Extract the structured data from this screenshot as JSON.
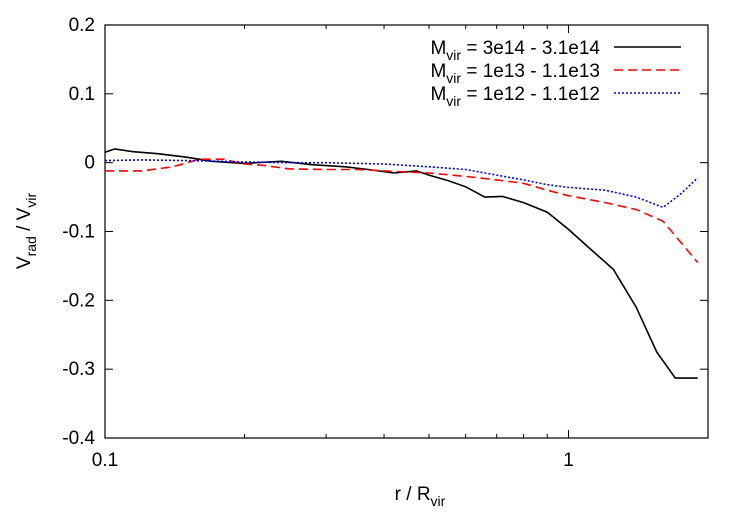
{
  "chart_data": {
    "type": "line",
    "xscale": "log",
    "xlim": [
      0.1,
      2.0
    ],
    "ylim": [
      -0.4,
      0.2
    ],
    "grid": false,
    "legend_position": "top-right",
    "xlabel": {
      "main": "r / R",
      "sub": "vir"
    },
    "ylabel": {
      "a": "V",
      "a_sub": "rad",
      "sep": " / V",
      "b_sub": "vir"
    },
    "x_ticks": [
      {
        "value": 0.1,
        "label": "0.1"
      },
      {
        "value": 1,
        "label": "1"
      }
    ],
    "y_ticks": [
      {
        "value": 0.2,
        "label": "0.2"
      },
      {
        "value": 0.1,
        "label": "0.1"
      },
      {
        "value": 0,
        "label": "0"
      },
      {
        "value": -0.1,
        "label": "-0.1"
      },
      {
        "value": -0.2,
        "label": "-0.2"
      },
      {
        "value": -0.3,
        "label": "-0.3"
      },
      {
        "value": -0.4,
        "label": "-0.4"
      }
    ],
    "series": [
      {
        "name": {
          "m": "M",
          "sub": "vir",
          "rest": " = 3e14 - 3.1e14"
        },
        "color": "#000000",
        "dash": "solid",
        "x": [
          0.1,
          0.105,
          0.115,
          0.13,
          0.15,
          0.17,
          0.2,
          0.24,
          0.28,
          0.33,
          0.37,
          0.42,
          0.47,
          0.5,
          0.55,
          0.6,
          0.66,
          0.72,
          0.8,
          0.9,
          1.0,
          1.1,
          1.25,
          1.4,
          1.55,
          1.7,
          1.9
        ],
        "y": [
          0.015,
          0.02,
          0.016,
          0.013,
          0.008,
          0.002,
          -0.001,
          0.002,
          -0.003,
          -0.006,
          -0.01,
          -0.015,
          -0.012,
          -0.018,
          -0.026,
          -0.035,
          -0.05,
          -0.049,
          -0.058,
          -0.072,
          -0.097,
          -0.122,
          -0.155,
          -0.21,
          -0.275,
          -0.313,
          -0.313
        ]
      },
      {
        "name": {
          "m": "M",
          "sub": "vir",
          "rest": " = 1e13 - 1.1e13"
        },
        "color": "#ff0000",
        "dash": "dashed",
        "x": [
          0.1,
          0.12,
          0.14,
          0.16,
          0.18,
          0.2,
          0.22,
          0.25,
          0.3,
          0.35,
          0.4,
          0.5,
          0.6,
          0.7,
          0.8,
          0.9,
          1.0,
          1.2,
          1.4,
          1.6,
          1.9
        ],
        "y": [
          -0.012,
          -0.012,
          -0.006,
          0.005,
          0.005,
          -0.002,
          -0.004,
          -0.009,
          -0.01,
          -0.01,
          -0.012,
          -0.015,
          -0.02,
          -0.025,
          -0.03,
          -0.04,
          -0.048,
          -0.058,
          -0.068,
          -0.085,
          -0.145
        ]
      },
      {
        "name": {
          "m": "M",
          "sub": "vir",
          "rest": " = 1e12 - 1.1e12"
        },
        "color": "#0000ff",
        "dash": "dotted",
        "x": [
          0.1,
          0.12,
          0.15,
          0.18,
          0.2,
          0.25,
          0.3,
          0.35,
          0.4,
          0.5,
          0.6,
          0.7,
          0.8,
          0.9,
          1.0,
          1.2,
          1.4,
          1.6,
          1.75,
          1.9
        ],
        "y": [
          0.003,
          0.004,
          0.003,
          0.002,
          0.001,
          0.0,
          0.0,
          -0.001,
          -0.002,
          -0.006,
          -0.01,
          -0.018,
          -0.025,
          -0.032,
          -0.036,
          -0.04,
          -0.05,
          -0.065,
          -0.045,
          -0.022
        ]
      }
    ]
  }
}
